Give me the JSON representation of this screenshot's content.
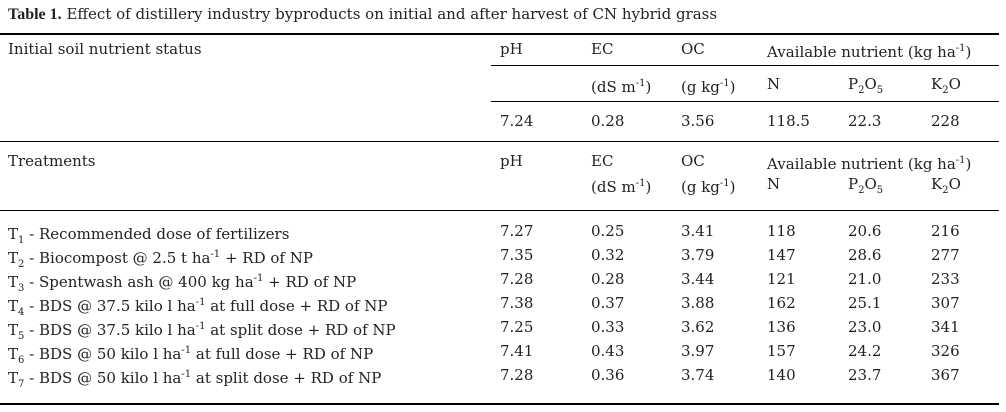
{
  "caption": {
    "label": "Table 1.",
    "text": "Effect of distillery industry byproducts on initial and after harvest of CN hybrid grass"
  },
  "initial": {
    "heading": "Initial soil nutrient status",
    "col_ph": "pH",
    "col_ec": "EC",
    "col_oc": "OC",
    "col_avail": "Available nutrient (kg ha",
    "col_avail_sup": "-1",
    "col_avail_end": ")",
    "unit_ec": "(dS m",
    "unit_ec_sup": "-1",
    "unit_ec_end": ")",
    "unit_oc": "(g kg",
    "unit_oc_sup": "-1",
    "unit_oc_end": ")",
    "col_n": "N",
    "col_p": "P",
    "col_p_sub": "2",
    "col_p_o": "O",
    "col_p_sub2": "5",
    "col_k": "K",
    "col_k_sub": "2",
    "col_k_o": "O",
    "values": {
      "ph": "7.24",
      "ec": "0.28",
      "oc": "3.56",
      "n": "118.5",
      "p": "22.3",
      "k": "228"
    }
  },
  "treatments_header": {
    "heading": "Treatments",
    "col_ph": "pH",
    "col_ec": "EC",
    "col_oc": "OC",
    "col_avail": "Available nutrient (kg ha",
    "col_avail_sup": "-1",
    "col_avail_end": ")",
    "unit_ec": "(dS m",
    "unit_ec_sup": "-1",
    "unit_ec_end": ")",
    "unit_oc": "(g kg",
    "unit_oc_sup": "-1",
    "unit_oc_end": ")",
    "col_n": "N",
    "col_p": "P",
    "col_p_sub": "2",
    "col_p_o": "O",
    "col_p_sub2": "5",
    "col_k": "K",
    "col_k_sub": "2",
    "col_k_o": "O"
  },
  "rows": [
    {
      "t": "T",
      "sub": "1",
      "desc": " - Recommended dose of fertilizers",
      "sup": "",
      "desc2": "",
      "ph": "7.27",
      "ec": "0.25",
      "oc": "3.41",
      "n": "118",
      "p": "20.6",
      "k": "216"
    },
    {
      "t": "T",
      "sub": "2",
      "desc": " - Biocompost @ 2.5 t ha",
      "sup": "-1",
      "desc2": " + RD of NP",
      "ph": "7.35",
      "ec": "0.32",
      "oc": "3.79",
      "n": "147",
      "p": "28.6",
      "k": "277"
    },
    {
      "t": "T",
      "sub": "3",
      "desc": " - Spentwash ash @ 400 kg ha",
      "sup": "-1",
      "desc2": " + RD of NP",
      "ph": "7.28",
      "ec": "0.28",
      "oc": "3.44",
      "n": "121",
      "p": "21.0",
      "k": "233"
    },
    {
      "t": "T",
      "sub": "4",
      "desc": " - BDS @ 37.5 kilo l ha",
      "sup": "-1",
      "desc2": " at full dose + RD of NP",
      "ph": "7.38",
      "ec": "0.37",
      "oc": "3.88",
      "n": "162",
      "p": "25.1",
      "k": "307"
    },
    {
      "t": "T",
      "sub": "5",
      "desc": " - BDS @ 37.5 kilo l ha",
      "sup": "-1",
      "desc2": " at split dose + RD of NP",
      "ph": "7.25",
      "ec": "0.33",
      "oc": "3.62",
      "n": "136",
      "p": "23.0",
      "k": "341"
    },
    {
      "t": "T",
      "sub": "6",
      "desc": " - BDS @ 50 kilo l ha",
      "sup": "-1",
      "desc2": " at full dose + RD of NP",
      "ph": "7.41",
      "ec": "0.43",
      "oc": "3.97",
      "n": "157",
      "p": "24.2",
      "k": "326"
    },
    {
      "t": "T",
      "sub": "7",
      "desc": " - BDS @ 50 kilo l ha",
      "sup": "-1",
      "desc2": " at split dose + RD of NP",
      "ph": "7.28",
      "ec": "0.36",
      "oc": "3.74",
      "n": "140",
      "p": "23.7",
      "k": "367"
    }
  ]
}
